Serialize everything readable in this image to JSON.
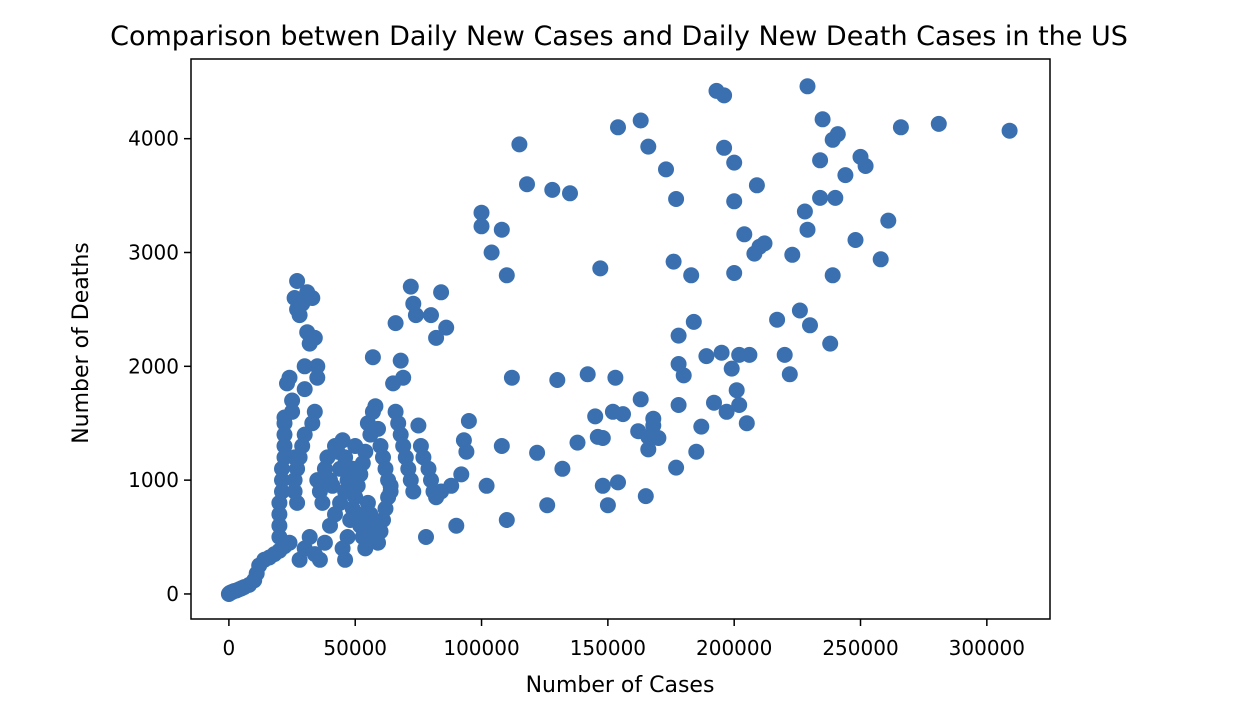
{
  "chart_data": {
    "type": "scatter",
    "title": "Comparison betwen Daily New Cases and Daily New Death Cases in the US",
    "xlabel": "Number of Cases",
    "ylabel": "Number of Deaths",
    "xlim": [
      -15000,
      325000
    ],
    "ylim": [
      -220,
      4700
    ],
    "xticks": [
      0,
      50000,
      100000,
      150000,
      200000,
      250000,
      300000
    ],
    "xtick_labels": [
      "0",
      "50000",
      "100000",
      "150000",
      "200000",
      "250000",
      "300000"
    ],
    "yticks": [
      0,
      1000,
      2000,
      3000,
      4000
    ],
    "ytick_labels": [
      "0",
      "1000",
      "2000",
      "3000",
      "4000"
    ],
    "grid": false,
    "marker_color": "#3a70b0",
    "points": [
      [
        0,
        0
      ],
      [
        200,
        5
      ],
      [
        500,
        10
      ],
      [
        1000,
        15
      ],
      [
        1500,
        20
      ],
      [
        2000,
        25
      ],
      [
        3000,
        30
      ],
      [
        4000,
        40
      ],
      [
        5000,
        50
      ],
      [
        6000,
        60
      ],
      [
        8000,
        80
      ],
      [
        10000,
        120
      ],
      [
        11000,
        180
      ],
      [
        12000,
        250
      ],
      [
        14000,
        300
      ],
      [
        16000,
        320
      ],
      [
        18000,
        350
      ],
      [
        20000,
        380
      ],
      [
        22000,
        420
      ],
      [
        24000,
        450
      ],
      [
        20000,
        500
      ],
      [
        20000,
        600
      ],
      [
        20000,
        700
      ],
      [
        20000,
        800
      ],
      [
        21000,
        900
      ],
      [
        21000,
        1000
      ],
      [
        21000,
        1100
      ],
      [
        22000,
        1200
      ],
      [
        22000,
        1300
      ],
      [
        22000,
        1400
      ],
      [
        22000,
        1500
      ],
      [
        22000,
        1550
      ],
      [
        23000,
        1850
      ],
      [
        24000,
        1900
      ],
      [
        25000,
        1600
      ],
      [
        25000,
        1700
      ],
      [
        26000,
        1200
      ],
      [
        26000,
        1000
      ],
      [
        26000,
        900
      ],
      [
        27000,
        800
      ],
      [
        27000,
        2500
      ],
      [
        26000,
        2600
      ],
      [
        27000,
        2750
      ],
      [
        28000,
        2450
      ],
      [
        29000,
        2550
      ],
      [
        30000,
        2000
      ],
      [
        30000,
        1800
      ],
      [
        31000,
        2300
      ],
      [
        32000,
        2200
      ],
      [
        31000,
        2650
      ],
      [
        33000,
        2600
      ],
      [
        34000,
        2250
      ],
      [
        35000,
        2000
      ],
      [
        35000,
        1900
      ],
      [
        34000,
        1600
      ],
      [
        33000,
        1500
      ],
      [
        30000,
        1400
      ],
      [
        29000,
        1300
      ],
      [
        28000,
        1200
      ],
      [
        27000,
        1100
      ],
      [
        28000,
        300
      ],
      [
        30000,
        400
      ],
      [
        32000,
        500
      ],
      [
        34000,
        350
      ],
      [
        36000,
        300
      ],
      [
        38000,
        450
      ],
      [
        40000,
        600
      ],
      [
        42000,
        700
      ],
      [
        44000,
        800
      ],
      [
        46000,
        900
      ],
      [
        35000,
        1000
      ],
      [
        36000,
        900
      ],
      [
        37000,
        800
      ],
      [
        38000,
        1100
      ],
      [
        39000,
        1200
      ],
      [
        40000,
        1000
      ],
      [
        41000,
        950
      ],
      [
        42000,
        1300
      ],
      [
        43000,
        1250
      ],
      [
        44000,
        1100
      ],
      [
        45000,
        400
      ],
      [
        46000,
        300
      ],
      [
        47000,
        500
      ],
      [
        48000,
        650
      ],
      [
        49000,
        750
      ],
      [
        50000,
        850
      ],
      [
        51000,
        950
      ],
      [
        52000,
        1050
      ],
      [
        53000,
        1150
      ],
      [
        54000,
        1250
      ],
      [
        45000,
        1350
      ],
      [
        46000,
        1200
      ],
      [
        47000,
        1000
      ],
      [
        48000,
        900
      ],
      [
        49000,
        1100
      ],
      [
        50000,
        1300
      ],
      [
        51000,
        700
      ],
      [
        52000,
        600
      ],
      [
        53000,
        500
      ],
      [
        54000,
        400
      ],
      [
        55000,
        1500
      ],
      [
        56000,
        1400
      ],
      [
        57000,
        1600
      ],
      [
        58000,
        1650
      ],
      [
        59000,
        1450
      ],
      [
        60000,
        1300
      ],
      [
        61000,
        1200
      ],
      [
        62000,
        1100
      ],
      [
        63000,
        1000
      ],
      [
        64000,
        900
      ],
      [
        55000,
        800
      ],
      [
        56000,
        700
      ],
      [
        57000,
        600
      ],
      [
        58000,
        500
      ],
      [
        59000,
        450
      ],
      [
        60000,
        550
      ],
      [
        61000,
        650
      ],
      [
        62000,
        750
      ],
      [
        63000,
        850
      ],
      [
        64000,
        950
      ],
      [
        57000,
        2080
      ],
      [
        65000,
        1850
      ],
      [
        66000,
        1600
      ],
      [
        67000,
        1500
      ],
      [
        68000,
        1400
      ],
      [
        69000,
        1300
      ],
      [
        70000,
        1200
      ],
      [
        71000,
        1100
      ],
      [
        72000,
        1000
      ],
      [
        73000,
        900
      ],
      [
        66000,
        2380
      ],
      [
        68000,
        2050
      ],
      [
        69000,
        1900
      ],
      [
        72000,
        2700
      ],
      [
        73000,
        2550
      ],
      [
        74000,
        2450
      ],
      [
        75000,
        1480
      ],
      [
        76000,
        1300
      ],
      [
        77000,
        1200
      ],
      [
        78000,
        500
      ],
      [
        80000,
        2450
      ],
      [
        82000,
        2250
      ],
      [
        84000,
        2650
      ],
      [
        86000,
        2340
      ],
      [
        79000,
        1100
      ],
      [
        80000,
        1000
      ],
      [
        81000,
        900
      ],
      [
        82000,
        850
      ],
      [
        84000,
        900
      ],
      [
        88000,
        950
      ],
      [
        90000,
        600
      ],
      [
        92000,
        1050
      ],
      [
        93000,
        1350
      ],
      [
        94000,
        1250
      ],
      [
        95000,
        1520
      ],
      [
        100000,
        3350
      ],
      [
        100000,
        3230
      ],
      [
        104000,
        3000
      ],
      [
        108000,
        3200
      ],
      [
        110000,
        2800
      ],
      [
        102000,
        950
      ],
      [
        108000,
        1300
      ],
      [
        110000,
        650
      ],
      [
        112000,
        1900
      ],
      [
        115000,
        3950
      ],
      [
        118000,
        3600
      ],
      [
        122000,
        1240
      ],
      [
        126000,
        780
      ],
      [
        128000,
        3550
      ],
      [
        130000,
        1880
      ],
      [
        132000,
        1100
      ],
      [
        135000,
        3520
      ],
      [
        138000,
        1330
      ],
      [
        142000,
        1930
      ],
      [
        145000,
        1560
      ],
      [
        146000,
        1380
      ],
      [
        147000,
        2860
      ],
      [
        148000,
        950
      ],
      [
        148000,
        1370
      ],
      [
        150000,
        780
      ],
      [
        152000,
        1600
      ],
      [
        153000,
        1900
      ],
      [
        154000,
        980
      ],
      [
        154000,
        4100
      ],
      [
        156000,
        1580
      ],
      [
        162000,
        1430
      ],
      [
        163000,
        1710
      ],
      [
        163000,
        4160
      ],
      [
        165000,
        860
      ],
      [
        166000,
        1270
      ],
      [
        166000,
        1380
      ],
      [
        166000,
        3930
      ],
      [
        168000,
        1540
      ],
      [
        168000,
        1480
      ],
      [
        170000,
        1370
      ],
      [
        173000,
        3730
      ],
      [
        176000,
        2920
      ],
      [
        177000,
        3470
      ],
      [
        177000,
        1110
      ],
      [
        178000,
        2020
      ],
      [
        178000,
        1660
      ],
      [
        178000,
        2270
      ],
      [
        180000,
        1920
      ],
      [
        183000,
        2800
      ],
      [
        184000,
        2390
      ],
      [
        185000,
        1250
      ],
      [
        187000,
        1470
      ],
      [
        189000,
        2090
      ],
      [
        192000,
        1680
      ],
      [
        193000,
        4420
      ],
      [
        195000,
        2120
      ],
      [
        196000,
        4380
      ],
      [
        196000,
        3920
      ],
      [
        197000,
        1600
      ],
      [
        199000,
        1980
      ],
      [
        200000,
        3450
      ],
      [
        200000,
        3790
      ],
      [
        200000,
        2820
      ],
      [
        201000,
        1790
      ],
      [
        202000,
        1660
      ],
      [
        202000,
        2100
      ],
      [
        204000,
        3160
      ],
      [
        205000,
        1500
      ],
      [
        206000,
        2100
      ],
      [
        208000,
        2990
      ],
      [
        209000,
        3590
      ],
      [
        210000,
        3050
      ],
      [
        212000,
        3080
      ],
      [
        217000,
        2410
      ],
      [
        220000,
        2100
      ],
      [
        222000,
        1930
      ],
      [
        223000,
        2980
      ],
      [
        226000,
        2490
      ],
      [
        228000,
        3360
      ],
      [
        229000,
        3200
      ],
      [
        229000,
        4460
      ],
      [
        230000,
        2360
      ],
      [
        234000,
        3480
      ],
      [
        234000,
        3810
      ],
      [
        235000,
        4170
      ],
      [
        238000,
        2200
      ],
      [
        239000,
        2800
      ],
      [
        239000,
        3990
      ],
      [
        240000,
        3480
      ],
      [
        241000,
        4040
      ],
      [
        244000,
        3680
      ],
      [
        248000,
        3110
      ],
      [
        250000,
        3840
      ],
      [
        252000,
        3760
      ],
      [
        258000,
        2940
      ],
      [
        261000,
        3280
      ],
      [
        266000,
        4100
      ],
      [
        281000,
        4130
      ],
      [
        309000,
        4070
      ]
    ]
  }
}
